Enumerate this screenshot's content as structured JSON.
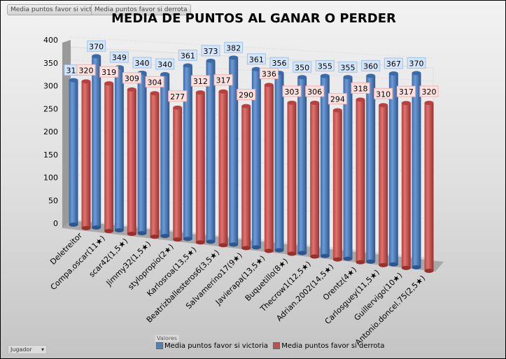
{
  "filter_buttons": [
    "Media puntos favor si victoria",
    "Media puntos favor si derrota"
  ],
  "axis_button": "Jugador",
  "values_button": "Valores",
  "chart_data": {
    "type": "bar",
    "title": "MEDIA DE PUNTOS AL GANAR O PERDER",
    "xlabel": "",
    "ylabel": "",
    "ylim": [
      0,
      400
    ],
    "yticks": [
      "0",
      "50",
      "100",
      "150",
      "200",
      "250",
      "300",
      "350",
      "400"
    ],
    "categories": [
      "Deletreitor",
      "Compa.oscar(11★)",
      "scar42(1,5★)",
      "Jimmy32(1,5★)",
      "stylopropio(2★)",
      "Karlosroa(13,5★)",
      "Beatrizballesteros6(3,5★)",
      "Salvamerino17(9★)",
      "Javierapa(13,5★)",
      "Buquetillo(8★)",
      "Thecrow1(12,5★)",
      "Adrian.2002(14,5★)",
      "Orentz(4★)",
      "Carlosguey(11,5★)",
      "Guillervigo(10★)",
      "Antonio.doncel.75(2,5★)"
    ],
    "series": [
      {
        "name": "Media puntos favor si victoria",
        "color": "#4f81bd",
        "values": [
          315,
          370,
          349,
          340,
          340,
          361,
          373,
          382,
          361,
          356,
          350,
          355,
          355,
          360,
          367,
          370
        ]
      },
      {
        "name": "Media puntos favor si derrota",
        "color": "#c0504d",
        "values": [
          320,
          319,
          309,
          304,
          277,
          312,
          317,
          290,
          336,
          303,
          306,
          294,
          318,
          310,
          317,
          320
        ]
      }
    ],
    "legend": "bottom"
  }
}
